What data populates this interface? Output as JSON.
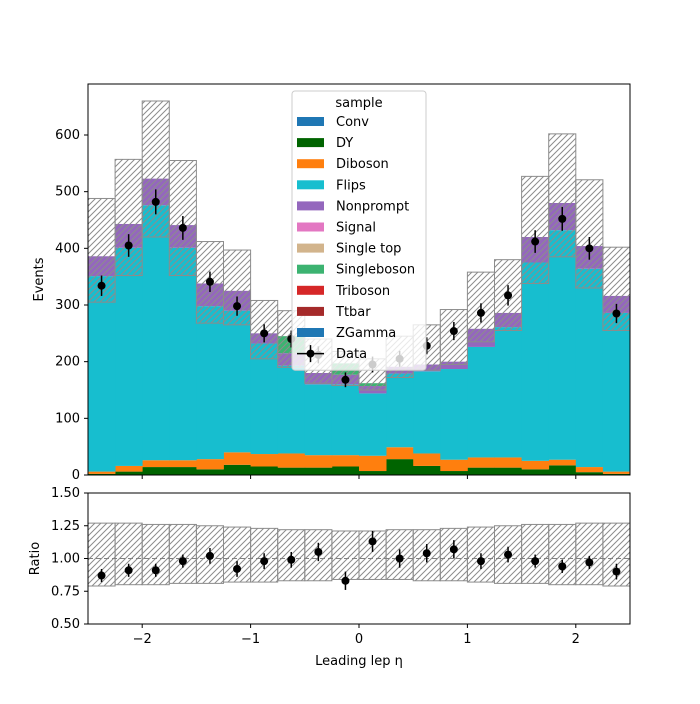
{
  "chart_data": [
    {
      "type": "bar",
      "subtype": "stacked-histogram",
      "ylabel": "Events",
      "xlim": [
        -2.5,
        2.5
      ],
      "ylim": [
        0,
        690
      ],
      "yticks": [
        0,
        100,
        200,
        300,
        400,
        500,
        600
      ],
      "bin_edges": [
        -2.5,
        -2.25,
        -2.0,
        -1.75,
        -1.5,
        -1.25,
        -1.0,
        -0.75,
        -0.5,
        -0.25,
        0.0,
        0.25,
        0.5,
        0.75,
        1.0,
        1.25,
        1.5,
        1.75,
        2.0,
        2.25,
        2.5
      ],
      "series": [
        {
          "name": "Conv",
          "color": "#1f77b4",
          "values": [
            0,
            0,
            0,
            0,
            0,
            0,
            0,
            0,
            0,
            0,
            0,
            0,
            0,
            0,
            0,
            0,
            0,
            0,
            0,
            0
          ]
        },
        {
          "name": "DY",
          "color": "#006400",
          "values": [
            2,
            6,
            14,
            14,
            10,
            18,
            15,
            13,
            13,
            15,
            7,
            28,
            16,
            7,
            13,
            13,
            10,
            17,
            5,
            2
          ]
        },
        {
          "name": "Diboson",
          "color": "#ff7f0e",
          "values": [
            4,
            10,
            12,
            12,
            18,
            22,
            22,
            25,
            22,
            20,
            27,
            21,
            22,
            20,
            18,
            18,
            15,
            10,
            9,
            4
          ]
        },
        {
          "name": "Flips",
          "color": "#17becf",
          "values": [
            345,
            385,
            450,
            375,
            270,
            250,
            195,
            155,
            125,
            125,
            110,
            130,
            145,
            160,
            195,
            230,
            350,
            405,
            350,
            280
          ]
        },
        {
          "name": "Nonprompt",
          "color": "#9467bd",
          "values": [
            35,
            42,
            47,
            40,
            40,
            35,
            18,
            22,
            20,
            17,
            13,
            12,
            12,
            13,
            32,
            25,
            45,
            48,
            40,
            30
          ]
        },
        {
          "name": "Signal",
          "color": "#e377c2",
          "values": [
            0,
            0,
            0,
            0,
            0,
            0,
            0,
            0,
            0,
            0,
            0,
            0,
            0,
            0,
            0,
            0,
            0,
            0,
            0,
            0
          ]
        },
        {
          "name": "Single top",
          "color": "#d2b48c",
          "values": [
            0,
            0,
            0,
            0,
            0,
            0,
            0,
            0,
            0,
            0,
            0,
            0,
            0,
            0,
            0,
            0,
            0,
            0,
            0,
            0
          ]
        },
        {
          "name": "Singleboson",
          "color": "#3cb371",
          "values": [
            0,
            0,
            0,
            0,
            0,
            0,
            0,
            30,
            0,
            20,
            5,
            0,
            0,
            0,
            0,
            0,
            0,
            0,
            0,
            0
          ]
        },
        {
          "name": "Triboson",
          "color": "#d62728",
          "values": [
            0,
            0,
            0,
            0,
            0,
            0,
            0,
            0,
            0,
            0,
            0,
            0,
            0,
            0,
            0,
            0,
            0,
            0,
            0,
            0
          ]
        },
        {
          "name": "Ttbar",
          "color": "#a52a2a",
          "values": [
            0,
            0,
            0,
            0,
            0,
            0,
            0,
            0,
            0,
            0,
            0,
            0,
            0,
            0,
            0,
            0,
            0,
            0,
            0,
            0
          ]
        },
        {
          "name": "ZGamma",
          "color": "#1f77b4",
          "values": [
            0,
            0,
            0,
            0,
            0,
            0,
            0,
            0,
            0,
            0,
            0,
            0,
            0,
            0,
            0,
            0,
            0,
            0,
            0,
            0
          ]
        }
      ],
      "uncertainty_band": {
        "upper": [
          488,
          557,
          660,
          555,
          412,
          397,
          308,
          290,
          240,
          218,
          205,
          245,
          265,
          292,
          358,
          380,
          527,
          602,
          521,
          402
        ],
        "lower": [
          305,
          352,
          420,
          352,
          268,
          265,
          205,
          190,
          162,
          158,
          150,
          172,
          185,
          195,
          235,
          255,
          338,
          385,
          330,
          255
        ]
      },
      "data": {
        "name": "Data",
        "x": [
          -2.375,
          -2.125,
          -1.875,
          -1.625,
          -1.375,
          -1.125,
          -0.875,
          -0.625,
          -0.375,
          -0.125,
          0.125,
          0.375,
          0.625,
          0.875,
          1.125,
          1.375,
          1.625,
          1.875,
          2.125,
          2.375
        ],
        "y": [
          334,
          405,
          482,
          436,
          341,
          298,
          250,
          240,
          212,
          168,
          195,
          205,
          228,
          254,
          286,
          317,
          412,
          452,
          400,
          285
        ],
        "yerr": [
          18,
          20,
          22,
          21,
          18,
          17,
          16,
          15,
          15,
          13,
          14,
          14,
          15,
          16,
          17,
          18,
          20,
          21,
          20,
          17
        ]
      },
      "legend": {
        "title": "sample",
        "placement": "top-center"
      }
    },
    {
      "type": "scatter",
      "subtype": "ratio",
      "xlabel": "Leading lep η",
      "ylabel": "Ratio",
      "xlim": [
        -2.5,
        2.5
      ],
      "ylim": [
        0.5,
        1.5
      ],
      "xticks": [
        -2,
        -1,
        0,
        1,
        2
      ],
      "yticks": [
        0.5,
        0.75,
        1.0,
        1.25,
        1.5
      ],
      "reference_line": 1.0,
      "band": {
        "upper": [
          1.27,
          1.27,
          1.26,
          1.26,
          1.25,
          1.24,
          1.23,
          1.22,
          1.22,
          1.21,
          1.21,
          1.22,
          1.22,
          1.23,
          1.24,
          1.25,
          1.26,
          1.26,
          1.27,
          1.27
        ],
        "lower": [
          0.79,
          0.8,
          0.8,
          0.81,
          0.81,
          0.82,
          0.82,
          0.83,
          0.83,
          0.84,
          0.84,
          0.84,
          0.83,
          0.83,
          0.82,
          0.81,
          0.81,
          0.8,
          0.8,
          0.79
        ]
      },
      "x": [
        -2.375,
        -2.125,
        -1.875,
        -1.625,
        -1.375,
        -1.125,
        -0.875,
        -0.625,
        -0.375,
        -0.125,
        0.125,
        0.375,
        0.625,
        0.875,
        1.125,
        1.375,
        1.625,
        1.875,
        2.125,
        2.375
      ],
      "y": [
        0.87,
        0.91,
        0.91,
        0.98,
        1.02,
        0.92,
        0.98,
        0.99,
        1.05,
        0.83,
        1.13,
        1.0,
        1.04,
        1.07,
        0.98,
        1.03,
        0.98,
        0.94,
        0.97,
        0.9
      ],
      "yerr": [
        0.05,
        0.05,
        0.05,
        0.05,
        0.06,
        0.06,
        0.06,
        0.06,
        0.07,
        0.07,
        0.08,
        0.07,
        0.07,
        0.07,
        0.06,
        0.06,
        0.05,
        0.05,
        0.05,
        0.06
      ]
    }
  ]
}
